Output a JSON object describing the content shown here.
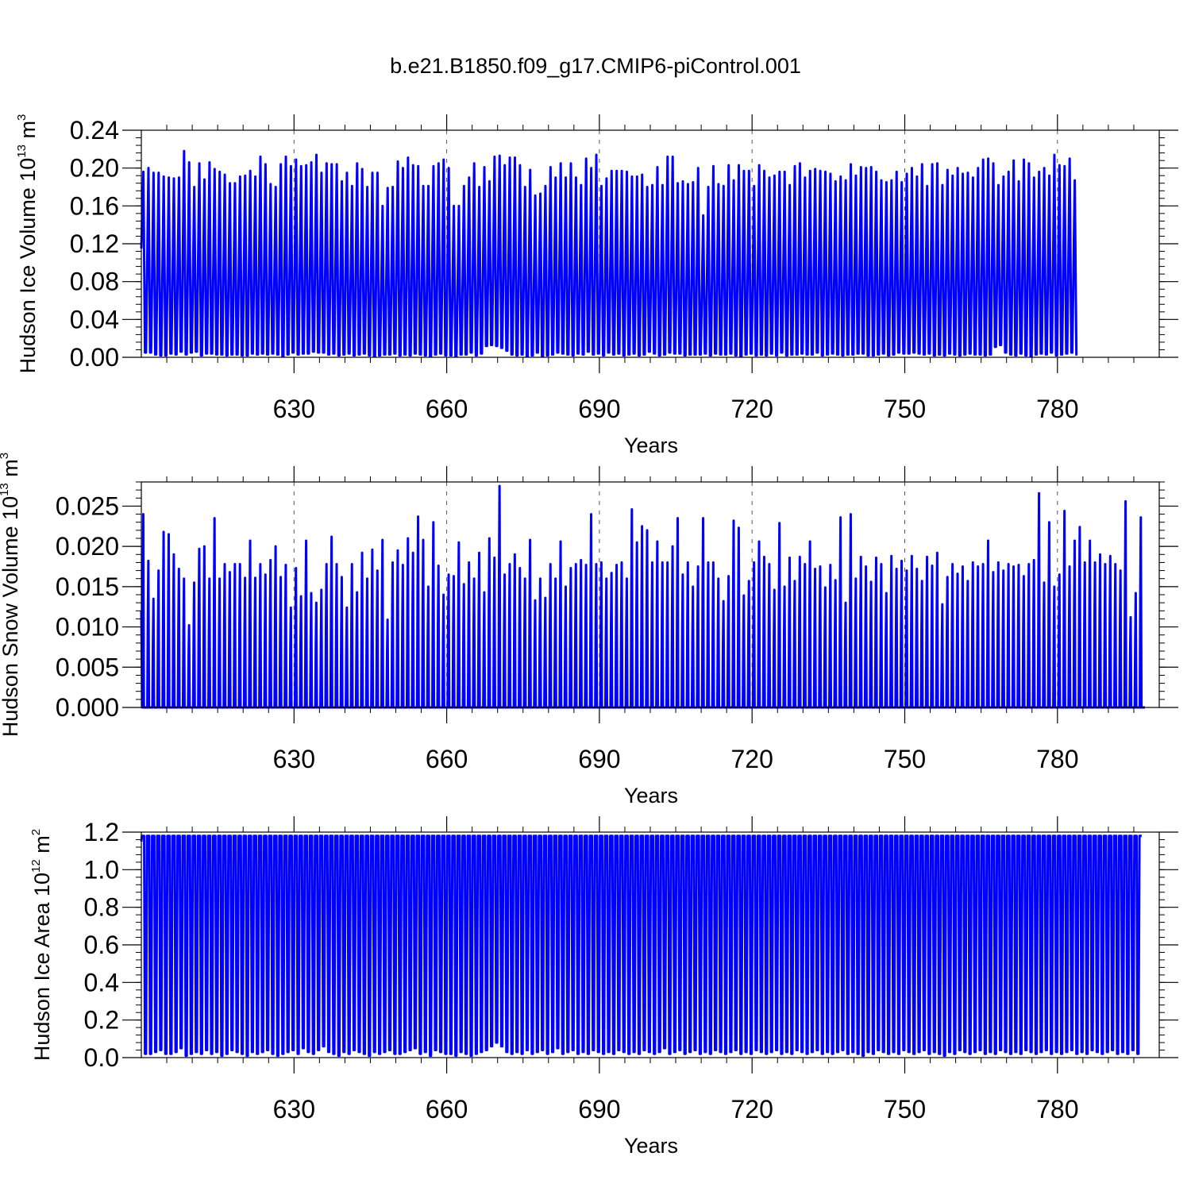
{
  "title": "b.e21.B1850.f09_g17.CMIP6-piControl.001",
  "line_color": "#0000ff",
  "chart_data": [
    {
      "type": "line",
      "name": "ice-volume",
      "ylabel": {
        "text": "Hudson Ice Volume 10",
        "exp": "13",
        "unit": " m",
        "unit_exp": "3"
      },
      "xlabel": "Years",
      "xlim": [
        600,
        800
      ],
      "ylim": [
        0,
        0.24
      ],
      "yticks": [
        0.0,
        0.04,
        0.08,
        0.12,
        0.16,
        0.2,
        0.24
      ],
      "ytick_labels": [
        "0.00",
        "0.04",
        "0.08",
        "0.12",
        "0.16",
        "0.20",
        "0.24"
      ],
      "xticks": [
        630,
        660,
        690,
        720,
        750,
        780
      ],
      "xtick_labels": [
        "630",
        "660",
        "690",
        "720",
        "750",
        "780"
      ],
      "grid_x": true,
      "start": {
        "year": 600,
        "value": 0.115
      },
      "end": {
        "year": 800,
        "value": 0.03
      },
      "annual_max": [
        0.196,
        0.2,
        0.195,
        0.195,
        0.191,
        0.19,
        0.189,
        0.19,
        0.218,
        0.206,
        0.18,
        0.205,
        0.188,
        0.206,
        0.199,
        0.196,
        0.193,
        0.184,
        0.184,
        0.191,
        0.192,
        0.197,
        0.191,
        0.212,
        0.204,
        0.183,
        0.18,
        0.204,
        0.212,
        0.202,
        0.209,
        0.202,
        0.203,
        0.206,
        0.214,
        0.195,
        0.205,
        0.204,
        0.204,
        0.186,
        0.195,
        0.181,
        0.205,
        0.199,
        0.18,
        0.195,
        0.195,
        0.16,
        0.179,
        0.18,
        0.207,
        0.2,
        0.211,
        0.203,
        0.202,
        0.181,
        0.181,
        0.202,
        0.205,
        0.209,
        0.2,
        0.16,
        0.16,
        0.181,
        0.19,
        0.205,
        0.18,
        0.201,
        0.186,
        0.212,
        0.213,
        0.203,
        0.211,
        0.211,
        0.203,
        0.18,
        0.198,
        0.171,
        0.173,
        0.181,
        0.201,
        0.19,
        0.205,
        0.19,
        0.205,
        0.19,
        0.182,
        0.21,
        0.2,
        0.214,
        0.181,
        0.189,
        0.197,
        0.197,
        0.197,
        0.196,
        0.191,
        0.191,
        0.193,
        0.18,
        0.182,
        0.201,
        0.182,
        0.212,
        0.212,
        0.184,
        0.186,
        0.183,
        0.185,
        0.2,
        0.15,
        0.18,
        0.202,
        0.183,
        0.181,
        0.203,
        0.187,
        0.203,
        0.197,
        0.197,
        0.181,
        0.203,
        0.197,
        0.19,
        0.192,
        0.196,
        0.196,
        0.182,
        0.202,
        0.205,
        0.19,
        0.197,
        0.199,
        0.197,
        0.196,
        0.194,
        0.186,
        0.191,
        0.187,
        0.204,
        0.192,
        0.201,
        0.2,
        0.201,
        0.196,
        0.187,
        0.185,
        0.187,
        0.196,
        0.185,
        0.194,
        0.2,
        0.191,
        0.204,
        0.181,
        0.204,
        0.205,
        0.182,
        0.198,
        0.192,
        0.2,
        0.194,
        0.195,
        0.19,
        0.2,
        0.209,
        0.21,
        0.205,
        0.182,
        0.191,
        0.196,
        0.208,
        0.186,
        0.209,
        0.205,
        0.19,
        0.196,
        0.2,
        0.192,
        0.214,
        0.203,
        0.202,
        0.21,
        0.187
      ],
      "annual_min": [
        0.005,
        0.005,
        0.003,
        0.002,
        0.002,
        0.004,
        0.003,
        0.006,
        0.003,
        0.005,
        0.006,
        0.002,
        0.004,
        0.004,
        0.003,
        0.003,
        0.002,
        0.003,
        0.003,
        0.002,
        0.002,
        0.004,
        0.003,
        0.004,
        0.003,
        0.004,
        0.003,
        0.001,
        0.003,
        0.005,
        0.003,
        0.004,
        0.004,
        0.006,
        0.005,
        0.005,
        0.003,
        0.004,
        0.002,
        0.003,
        0.004,
        0.002,
        0.003,
        0.004,
        0.002,
        0.001,
        0.002,
        0.003,
        0.003,
        0.004,
        0.002,
        0.003,
        0.002,
        0.004,
        0.003,
        0.002,
        0.001,
        0.003,
        0.004,
        0.002,
        0.002,
        0.001,
        0.003,
        0.003,
        0.005,
        0.002,
        0.004,
        0.012,
        0.013,
        0.012,
        0.01,
        0.007,
        0.003,
        0.002,
        0.003,
        0.001,
        0.002,
        0.005,
        0.001,
        0.002,
        0.003,
        0.005,
        0.004,
        0.003,
        0.002,
        0.004,
        0.003,
        0.006,
        0.003,
        0.004,
        0.002,
        0.005,
        0.003,
        0.004,
        0.002,
        0.003,
        0.004,
        0.002,
        0.003,
        0.006,
        0.004,
        0.002,
        0.003,
        0.005,
        0.004,
        0.004,
        0.002,
        0.003,
        0.003,
        0.003,
        0.004,
        0.002,
        0.004,
        0.003,
        0.003,
        0.004,
        0.002,
        0.001,
        0.003,
        0.004,
        0.002,
        0.003,
        0.002,
        0.004,
        0.002,
        0.005,
        0.002,
        0.003,
        0.003,
        0.004,
        0.003,
        0.003,
        0.005,
        0.002,
        0.003,
        0.004,
        0.003,
        0.002,
        0.003,
        0.003,
        0.004,
        0.004,
        0.002,
        0.002,
        0.003,
        0.004,
        0.002,
        0.003,
        0.005,
        0.004,
        0.004,
        0.005,
        0.004,
        0.003,
        0.004,
        0.002,
        0.003,
        0.002,
        0.004,
        0.003,
        0.002,
        0.003,
        0.004,
        0.003,
        0.003,
        0.002,
        0.003,
        0.011,
        0.013,
        0.005,
        0.003,
        0.002,
        0.004,
        0.002,
        0.001,
        0.003,
        0.004,
        0.003,
        0.005,
        0.002,
        0.003,
        0.004,
        0.005,
        0.003,
        0.004,
        0.002,
        0.005,
        0.003,
        0.004,
        0.004
      ]
    },
    {
      "type": "line",
      "name": "snow-volume",
      "ylabel": {
        "text": "Hudson Snow Volume 10",
        "exp": "13",
        "unit": " m",
        "unit_exp": "3"
      },
      "xlabel": "Years",
      "xlim": [
        600,
        800
      ],
      "ylim": [
        0,
        0.028
      ],
      "yticks": [
        0.0,
        0.005,
        0.01,
        0.015,
        0.02,
        0.025
      ],
      "ytick_labels": [
        "0.000",
        "0.005",
        "0.010",
        "0.015",
        "0.020",
        "0.025"
      ],
      "xticks": [
        630,
        660,
        690,
        720,
        750,
        780
      ],
      "xtick_labels": [
        "630",
        "660",
        "690",
        "720",
        "750",
        "780"
      ],
      "grid_x": true,
      "start": {
        "year": 600,
        "value": 0.012
      },
      "end": {
        "year": 800,
        "value": 0.0025
      },
      "annual_max": [
        0.024,
        0.0182,
        0.0135,
        0.017,
        0.0218,
        0.0215,
        0.019,
        0.0172,
        0.016,
        0.0102,
        0.0155,
        0.0197,
        0.02,
        0.016,
        0.0235,
        0.016,
        0.0178,
        0.0168,
        0.0178,
        0.0178,
        0.0161,
        0.0207,
        0.0161,
        0.0178,
        0.0165,
        0.0183,
        0.02,
        0.0162,
        0.0177,
        0.0124,
        0.0173,
        0.0138,
        0.0207,
        0.0142,
        0.013,
        0.0146,
        0.0178,
        0.0212,
        0.0178,
        0.0162,
        0.0124,
        0.0178,
        0.0143,
        0.0192,
        0.016,
        0.0196,
        0.017,
        0.0208,
        0.0109,
        0.018,
        0.0195,
        0.0177,
        0.021,
        0.0192,
        0.0237,
        0.0208,
        0.015,
        0.023,
        0.0176,
        0.014,
        0.0165,
        0.0163,
        0.0205,
        0.0153,
        0.018,
        0.016,
        0.0192,
        0.0143,
        0.021,
        0.0186,
        0.0275,
        0.0165,
        0.0178,
        0.019,
        0.0173,
        0.016,
        0.0208,
        0.0133,
        0.016,
        0.0136,
        0.0178,
        0.016,
        0.0206,
        0.015,
        0.0173,
        0.0178,
        0.0183,
        0.0177,
        0.024,
        0.0178,
        0.018,
        0.016,
        0.0167,
        0.0177,
        0.018,
        0.016,
        0.0246,
        0.0205,
        0.0225,
        0.022,
        0.018,
        0.0206,
        0.018,
        0.018,
        0.02,
        0.0235,
        0.0165,
        0.018,
        0.015,
        0.0175,
        0.0235,
        0.018,
        0.018,
        0.016,
        0.0132,
        0.0163,
        0.0232,
        0.0223,
        0.0139,
        0.0157,
        0.018,
        0.0206,
        0.0187,
        0.0178,
        0.0146,
        0.0229,
        0.015,
        0.0186,
        0.0157,
        0.0187,
        0.0178,
        0.0206,
        0.0172,
        0.0175,
        0.0149,
        0.0177,
        0.0158,
        0.0236,
        0.013,
        0.024,
        0.016,
        0.0187,
        0.0175,
        0.0156,
        0.0186,
        0.0178,
        0.0142,
        0.0188,
        0.0172,
        0.0182,
        0.017,
        0.0188,
        0.0172,
        0.0157,
        0.0187,
        0.0176,
        0.0192,
        0.0128,
        0.0162,
        0.0178,
        0.0166,
        0.0175,
        0.0157,
        0.018,
        0.0175,
        0.0178,
        0.0207,
        0.0168,
        0.018,
        0.017,
        0.0178,
        0.0175,
        0.0177,
        0.0163,
        0.0178,
        0.0183,
        0.0266,
        0.0155,
        0.023,
        0.015,
        0.0165,
        0.0244,
        0.0175,
        0.0207,
        0.0224,
        0.018,
        0.0207,
        0.018,
        0.019,
        0.0178,
        0.0188,
        0.0178,
        0.017,
        0.0256,
        0.0112,
        0.0142,
        0.0236
      ],
      "annual_min": []
    },
    {
      "type": "line",
      "name": "ice-area",
      "ylabel": {
        "text": "Hudson Ice Area 10",
        "exp": "12",
        "unit": " m",
        "unit_exp": "2"
      },
      "xlabel": "Years",
      "xlim": [
        600,
        800
      ],
      "ylim": [
        0,
        1.2
      ],
      "yticks": [
        0.0,
        0.2,
        0.4,
        0.6,
        0.8,
        1.0,
        1.2
      ],
      "ytick_labels": [
        "0.0",
        "0.2",
        "0.4",
        "0.6",
        "0.8",
        "1.0",
        "1.2"
      ],
      "xticks": [
        630,
        660,
        690,
        720,
        750,
        780
      ],
      "xtick_labels": [
        "630",
        "660",
        "690",
        "720",
        "750",
        "780"
      ],
      "grid_x": false,
      "start": {
        "year": 600,
        "value": 1.15
      },
      "end": {
        "year": 800,
        "value": 0.66
      },
      "annual_max_value": 1.18,
      "annual_min": [
        0.02,
        0.02,
        0.03,
        0.04,
        0.02,
        0.02,
        0.03,
        0.05,
        0.01,
        0.02,
        0.03,
        0.02,
        0.04,
        0.02,
        0.03,
        0.01,
        0.02,
        0.04,
        0.03,
        0.02,
        0.01,
        0.03,
        0.02,
        0.03,
        0.04,
        0.02,
        0.01,
        0.02,
        0.03,
        0.04,
        0.02,
        0.05,
        0.03,
        0.02,
        0.04,
        0.06,
        0.03,
        0.02,
        0.01,
        0.03,
        0.02,
        0.04,
        0.03,
        0.02,
        0.01,
        0.03,
        0.02,
        0.03,
        0.04,
        0.02,
        0.02,
        0.03,
        0.04,
        0.05,
        0.02,
        0.03,
        0.01,
        0.04,
        0.03,
        0.02,
        0.02,
        0.01,
        0.03,
        0.02,
        0.01,
        0.02,
        0.03,
        0.04,
        0.06,
        0.08,
        0.06,
        0.03,
        0.02,
        0.03,
        0.02,
        0.04,
        0.02,
        0.03,
        0.04,
        0.02,
        0.03,
        0.05,
        0.02,
        0.03,
        0.04,
        0.02,
        0.03,
        0.02,
        0.04,
        0.03,
        0.02,
        0.03,
        0.02,
        0.04,
        0.03,
        0.02,
        0.03,
        0.02,
        0.04,
        0.03,
        0.02,
        0.03,
        0.05,
        0.02,
        0.03,
        0.04,
        0.02,
        0.03,
        0.04,
        0.02,
        0.03,
        0.02,
        0.04,
        0.03,
        0.02,
        0.03,
        0.04,
        0.02,
        0.03,
        0.02,
        0.04,
        0.03,
        0.02,
        0.03,
        0.04,
        0.02,
        0.03,
        0.02,
        0.04,
        0.03,
        0.02,
        0.03,
        0.04,
        0.02,
        0.03,
        0.02,
        0.03,
        0.04,
        0.02,
        0.03,
        0.02,
        0.01,
        0.03,
        0.02,
        0.04,
        0.03,
        0.02,
        0.03,
        0.02,
        0.04,
        0.03,
        0.02,
        0.03,
        0.04,
        0.02,
        0.03,
        0.02,
        0.01,
        0.03,
        0.02,
        0.04,
        0.03,
        0.02,
        0.03,
        0.04,
        0.02,
        0.03,
        0.02,
        0.04,
        0.03,
        0.02,
        0.03,
        0.02,
        0.04,
        0.03,
        0.02,
        0.03,
        0.04,
        0.02,
        0.03,
        0.02,
        0.03,
        0.04,
        0.02,
        0.03,
        0.02,
        0.04,
        0.03,
        0.02,
        0.03,
        0.04,
        0.02,
        0.03,
        0.02,
        0.04,
        0.02
      ]
    }
  ]
}
